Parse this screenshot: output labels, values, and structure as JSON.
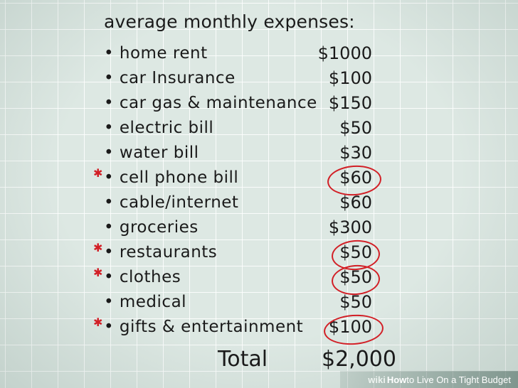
{
  "heading": "average monthly expenses:",
  "items": [
    {
      "label": "• home rent",
      "amount": "$1000",
      "starred": false,
      "circled": false
    },
    {
      "label": "• car Insurance",
      "amount": "$100",
      "starred": false,
      "circled": false
    },
    {
      "label": "• car gas & maintenance",
      "amount": "$150",
      "starred": false,
      "circled": false
    },
    {
      "label": "• electric bill",
      "amount": "$50",
      "starred": false,
      "circled": false
    },
    {
      "label": "• water bill",
      "amount": "$30",
      "starred": false,
      "circled": false
    },
    {
      "label": "• cell phone bill",
      "amount": "$60",
      "starred": true,
      "circled": true
    },
    {
      "label": "• cable/internet",
      "amount": "$60",
      "starred": false,
      "circled": false
    },
    {
      "label": "• groceries",
      "amount": "$300",
      "starred": false,
      "circled": false
    },
    {
      "label": "• restaurants",
      "amount": "$50",
      "starred": true,
      "circled": true
    },
    {
      "label": "• clothes",
      "amount": "$50",
      "starred": true,
      "circled": true
    },
    {
      "label": "• medical",
      "amount": "$50",
      "starred": false,
      "circled": false
    },
    {
      "label": "• gifts & entertainment",
      "amount": "$100",
      "starred": true,
      "circled": true
    }
  ],
  "total": {
    "label": "Total",
    "value": "$2,000"
  },
  "footer": {
    "brand": "wiki",
    "how_prefix": "How",
    "title": " to Live On a Tight Budget"
  },
  "colors": {
    "background": "#dde8e3",
    "grid": "#ffffff",
    "ink": "#1a1a1a",
    "marker": "#d21f26"
  }
}
